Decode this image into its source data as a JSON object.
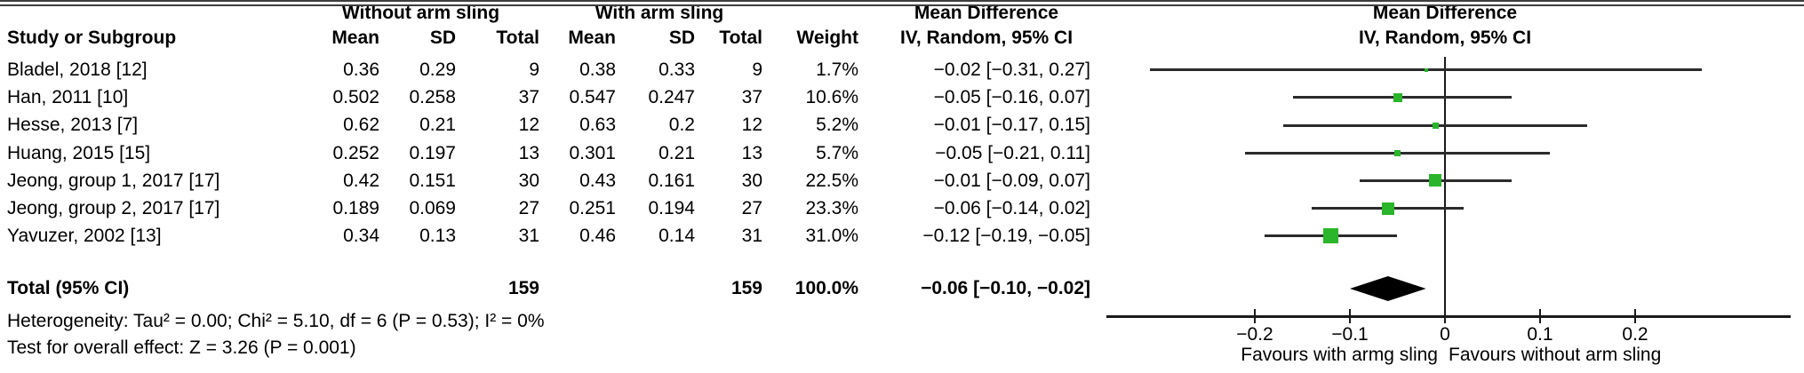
{
  "colors": {
    "marker_green": "#2ab52a",
    "diamond_black": "#000000",
    "line_dark": "#2b2b2b",
    "axis_black": "#1a1a1a"
  },
  "header": {
    "study": "Study or Subgroup",
    "group_without": "Without arm sling",
    "group_with": "With arm sling",
    "mean": "Mean",
    "sd": "SD",
    "total": "Total",
    "weight": "Weight",
    "md_title": "Mean Difference",
    "md_sub": "IV, Random, 95% CI"
  },
  "rows": [
    {
      "study": "Bladel, 2018 [12]",
      "mean1": "0.36",
      "sd1": "0.29",
      "n1": "9",
      "mean2": "0.38",
      "sd2": "0.33",
      "n2": "9",
      "weight": "1.7%",
      "ci": "−0.02 [−0.31, 0.27]"
    },
    {
      "study": "Han, 2011 [10]",
      "mean1": "0.502",
      "sd1": "0.258",
      "n1": "37",
      "mean2": "0.547",
      "sd2": "0.247",
      "n2": "37",
      "weight": "10.6%",
      "ci": "−0.05 [−0.16, 0.07]"
    },
    {
      "study": "Hesse, 2013 [7]",
      "mean1": "0.62",
      "sd1": "0.21",
      "n1": "12",
      "mean2": "0.63",
      "sd2": "0.2",
      "n2": "12",
      "weight": "5.2%",
      "ci": "−0.01 [−0.17, 0.15]"
    },
    {
      "study": "Huang, 2015 [15]",
      "mean1": "0.252",
      "sd1": "0.197",
      "n1": "13",
      "mean2": "0.301",
      "sd2": "0.21",
      "n2": "13",
      "weight": "5.7%",
      "ci": "−0.05 [−0.21, 0.11]"
    },
    {
      "study": "Jeong, group 1, 2017 [17]",
      "mean1": "0.42",
      "sd1": "0.151",
      "n1": "30",
      "mean2": "0.43",
      "sd2": "0.161",
      "n2": "30",
      "weight": "22.5%",
      "ci": "−0.01 [−0.09, 0.07]"
    },
    {
      "study": "Jeong, group 2, 2017 [17]",
      "mean1": "0.189",
      "sd1": "0.069",
      "n1": "27",
      "mean2": "0.251",
      "sd2": "0.194",
      "n2": "27",
      "weight": "23.3%",
      "ci": "−0.06 [−0.14, 0.02]"
    },
    {
      "study": "Yavuzer, 2002 [13]",
      "mean1": "0.34",
      "sd1": "0.13",
      "n1": "31",
      "mean2": "0.46",
      "sd2": "0.14",
      "n2": "31",
      "weight": "31.0%",
      "ci": "−0.12 [−0.19, −0.05]"
    }
  ],
  "total": {
    "label": "Total (95% CI)",
    "n1": "159",
    "n2": "159",
    "weight": "100.0%",
    "ci": "−0.06 [−0.10, −0.02]"
  },
  "footer": {
    "heterogeneity": "Heterogeneity: Tau² = 0.00; Chi² = 5.10, df = 6 (P = 0.53); I² = 0%",
    "overall_effect": "Test for overall effect: Z = 3.26 (P = 0.001)"
  },
  "chart_data": {
    "type": "scatter",
    "variant": "forest-plot",
    "title": "Mean Difference",
    "subtitle": "IV, Random, 95% CI",
    "effect_measure": "Mean Difference (IV, Random, 95% CI)",
    "xlim": [
      -0.356,
      0.364
    ],
    "ticks": [
      -0.2,
      -0.1,
      0,
      0.1,
      0.2
    ],
    "tick_labels": [
      "−0.2",
      "−0.1",
      "0",
      "0.1",
      "0.2"
    ],
    "zero_reference": 0,
    "favours_left": "Favours with armg sling",
    "favours_right": "Favours without arm sling",
    "studies": [
      {
        "name": "Bladel, 2018 [12]",
        "est": -0.02,
        "lo": -0.31,
        "hi": 0.27,
        "weight_pct": 1.7
      },
      {
        "name": "Han, 2011 [10]",
        "est": -0.05,
        "lo": -0.16,
        "hi": 0.07,
        "weight_pct": 10.6
      },
      {
        "name": "Hesse, 2013 [7]",
        "est": -0.01,
        "lo": -0.17,
        "hi": 0.15,
        "weight_pct": 5.2
      },
      {
        "name": "Huang, 2015 [15]",
        "est": -0.05,
        "lo": -0.21,
        "hi": 0.11,
        "weight_pct": 5.7
      },
      {
        "name": "Jeong, group 1, 2017 [17]",
        "est": -0.01,
        "lo": -0.09,
        "hi": 0.07,
        "weight_pct": 22.5
      },
      {
        "name": "Jeong, group 2, 2017 [17]",
        "est": -0.06,
        "lo": -0.14,
        "hi": 0.02,
        "weight_pct": 23.3
      },
      {
        "name": "Yavuzer, 2002 [13]",
        "est": -0.12,
        "lo": -0.19,
        "hi": -0.05,
        "weight_pct": 31.0
      }
    ],
    "total": {
      "name": "Total (95% CI)",
      "est": -0.06,
      "lo": -0.1,
      "hi": -0.02,
      "weight_pct": 100.0
    }
  }
}
